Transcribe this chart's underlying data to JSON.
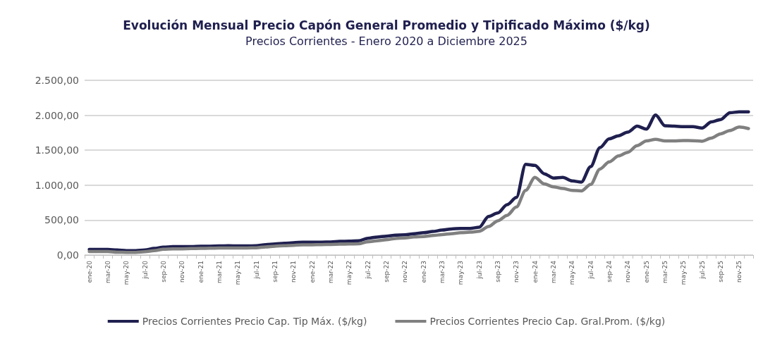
{
  "chart_data": {
    "type": "line",
    "title": "Evolución Mensual Precio Capón General Promedio y Tipificado Máximo ($/kg)",
    "subtitle": "Precios Corrientes - Enero 2020 a Diciembre 2025",
    "categories": [
      "ene-20",
      null,
      "mar-20",
      null,
      "may-20",
      null,
      "jul-20",
      null,
      "sep-20",
      null,
      "nov-20",
      null,
      "ene-21",
      null,
      "mar-21",
      null,
      "may-21",
      null,
      "jul-21",
      null,
      "sep-21",
      null,
      "nov-21",
      null,
      "ene-22",
      null,
      "mar-22",
      null,
      "may-22",
      null,
      "jul-22",
      null,
      "sep-22",
      null,
      "nov-22",
      null,
      "ene-23",
      null,
      "mar-23",
      null,
      "may-23",
      null,
      "jul-23",
      null,
      "sep-23",
      null,
      "nov-23",
      null,
      "ene-24",
      null,
      "mar-24",
      null,
      "may-24",
      null,
      "jul-24",
      null,
      "sep-24",
      null,
      "nov-24",
      null,
      "ene-25",
      null,
      "mar-25",
      null,
      "may-25",
      null,
      "jul-25",
      null,
      "sep-25",
      null,
      "nov-25",
      null
    ],
    "series": [
      {
        "name": "Precios Corrientes Precio Cap. Tip Máx. ($/kg)",
        "color": "#1f1f4f",
        "values": [
          80,
          80,
          80,
          73,
          63,
          63,
          73,
          95,
          114,
          120,
          120,
          120,
          127,
          127,
          130,
          133,
          130,
          130,
          133,
          149,
          158,
          168,
          177,
          184,
          184,
          184,
          187,
          196,
          199,
          203,
          240,
          258,
          270,
          286,
          289,
          306,
          320,
          337,
          357,
          374,
          381,
          381,
          398,
          551,
          602,
          721,
          823,
          1299,
          1282,
          1163,
          1102,
          1112,
          1061,
          1044,
          1265,
          1537,
          1663,
          1707,
          1759,
          1844,
          1803,
          2003,
          1850,
          1844,
          1837,
          1837,
          1816,
          1905,
          1939,
          2037,
          2048,
          2048
        ]
      },
      {
        "name": "Precios Corrientes Precio Cap. Gral.Prom. ($/kg)",
        "color": "#808080",
        "values": [
          51,
          51,
          51,
          41,
          38,
          38,
          47,
          63,
          82,
          89,
          89,
          92,
          95,
          98,
          101,
          101,
          101,
          101,
          104,
          117,
          127,
          133,
          139,
          146,
          146,
          149,
          152,
          155,
          158,
          161,
          190,
          205,
          218,
          238,
          245,
          259,
          265,
          279,
          293,
          306,
          320,
          327,
          340,
          408,
          490,
          568,
          687,
          925,
          1112,
          1017,
          976,
          952,
          925,
          918,
          1010,
          1231,
          1333,
          1418,
          1469,
          1565,
          1633,
          1656,
          1633,
          1633,
          1639,
          1636,
          1629,
          1673,
          1735,
          1782,
          1833,
          1810
        ]
      }
    ],
    "ylim": [
      0,
      2500
    ],
    "yticks": [
      {
        "value": 0,
        "label": "0,00"
      },
      {
        "value": 500,
        "label": "500,00"
      },
      {
        "value": 1000,
        "label": "1.000,00"
      },
      {
        "value": 1500,
        "label": "1.500,00"
      },
      {
        "value": 2000,
        "label": "2.000,00"
      },
      {
        "value": 2500,
        "label": "2.500,00"
      }
    ],
    "grid": "y",
    "legend": "bottom",
    "marker": "none",
    "line_style": "solid"
  }
}
